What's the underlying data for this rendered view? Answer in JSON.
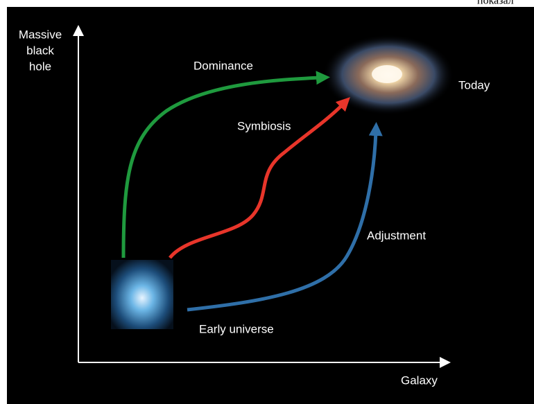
{
  "caption": "показал",
  "axes": {
    "y_label": [
      "Massive",
      "black",
      "hole"
    ],
    "x_label": "Galaxy"
  },
  "paths": [
    {
      "label": "Dominance"
    },
    {
      "label": "Symbiosis"
    },
    {
      "label": "Adjustment"
    }
  ],
  "states": {
    "start": "Early universe",
    "end": "Today"
  }
}
